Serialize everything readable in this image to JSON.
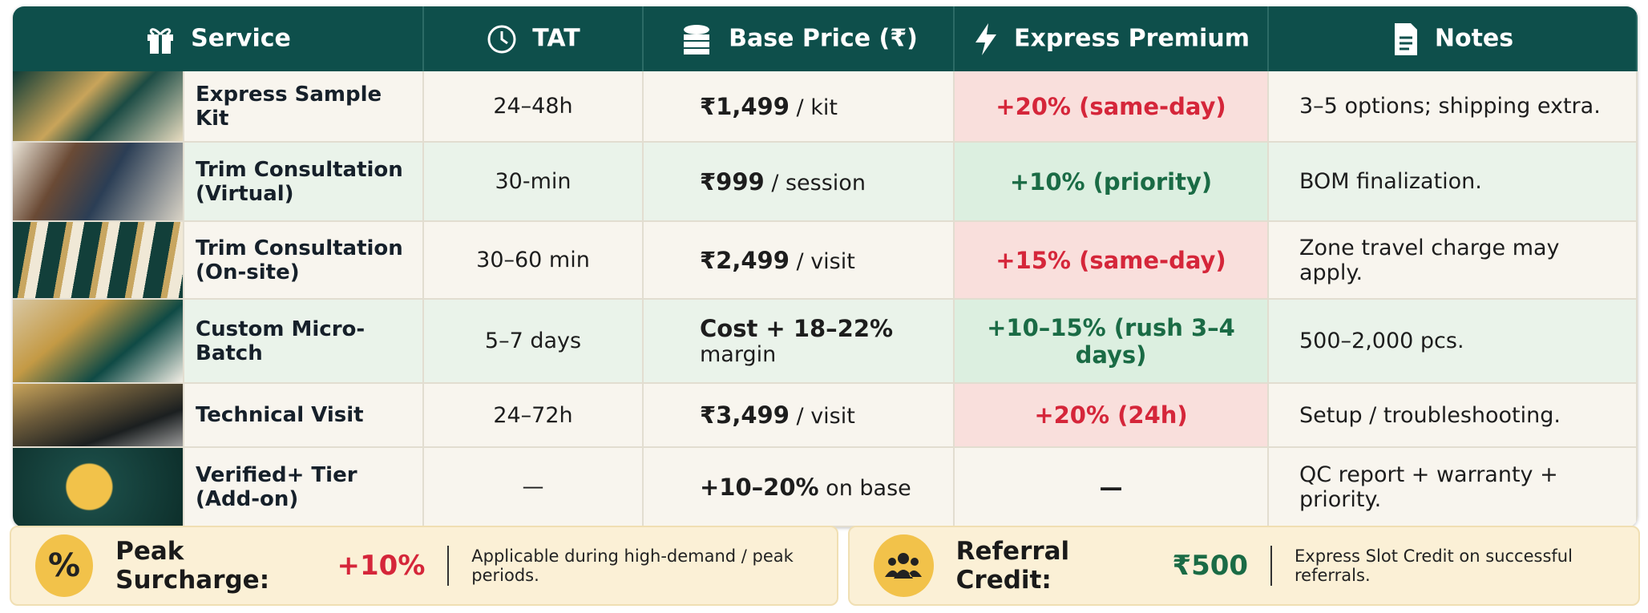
{
  "table": {
    "headers": [
      "Service",
      "TAT",
      "Base Price (₹)",
      "Express Premium",
      "Notes"
    ],
    "rows": [
      {
        "service": "Express Sample Kit",
        "tat": "24–48h",
        "price": "₹1,499",
        "unit": "/ kit",
        "premium": "+20% (same-day)",
        "notes": "3–5 options; shipping extra."
      },
      {
        "service": "Trim Consultation (Virtual)",
        "tat": "30-min",
        "price": "₹999",
        "unit": "/ session",
        "premium": "+10% (priority)",
        "notes": "BOM finalization."
      },
      {
        "service": "Trim Consultation (On-site)",
        "tat": "30–60 min",
        "price": "₹2,499",
        "unit": "/ visit",
        "premium": "+15% (same-day)",
        "notes": "Zone travel charge may apply."
      },
      {
        "service": "Custom Micro-Batch",
        "tat": "5–7 days",
        "price": "Cost + 18–22%",
        "unit": "margin",
        "premium": "+10–15% (rush 3–4 days)",
        "notes": "500–2,000 pcs."
      },
      {
        "service": "Technical Visit",
        "tat": "24–72h",
        "price": "₹3,499",
        "unit": "/ visit",
        "premium": "+20% (24h)",
        "notes": "Setup / troubleshooting."
      },
      {
        "service": "Verified+ Tier (Add-on)",
        "tat": "—",
        "price": "+10–20%",
        "unit": "on base",
        "premium": "—",
        "notes": "QC report + warranty + priority."
      }
    ]
  },
  "footer": [
    {
      "icon": "%",
      "label": "Peak Surcharge:",
      "value": "+10%",
      "description": "Applicable during high-demand / peak periods."
    },
    {
      "label": "Referral Credit:",
      "value": "₹500",
      "description": "Express Slot Credit on successful referrals."
    }
  ]
}
